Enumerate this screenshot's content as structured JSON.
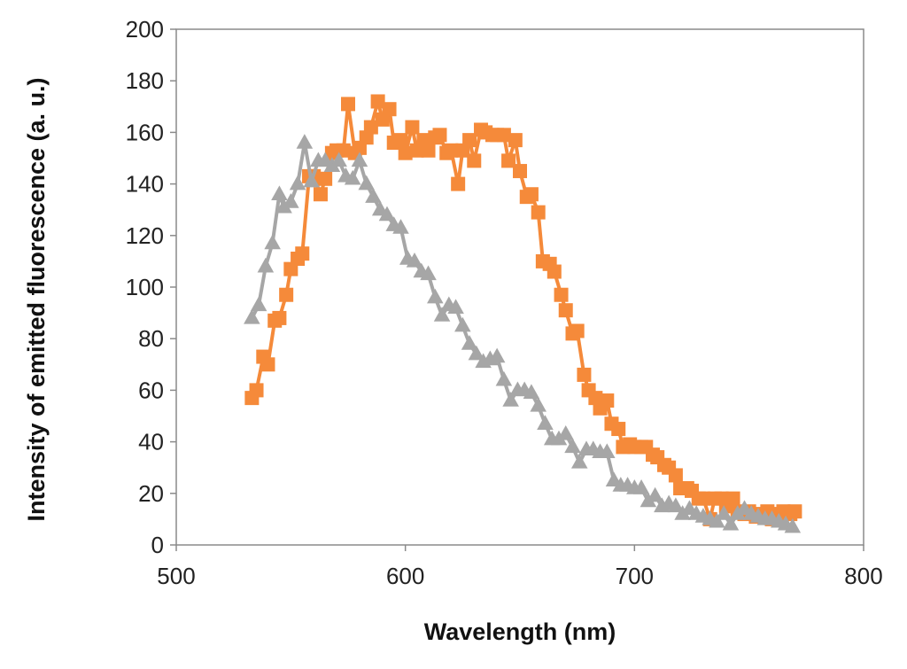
{
  "chart_data": {
    "type": "line",
    "title": "",
    "xlabel": "Wavelength (nm)",
    "ylabel": "Intensity of emitted fluorescence (a. u.)",
    "xlim": [
      500,
      800
    ],
    "ylim": [
      0,
      200
    ],
    "xticks": [
      500,
      600,
      700,
      800
    ],
    "yticks": [
      0,
      20,
      40,
      60,
      80,
      100,
      120,
      140,
      160,
      180,
      200
    ],
    "grid": false,
    "legend": "none",
    "series": [
      {
        "name": "orange-square-series",
        "color": "#f58a3a",
        "marker": "square",
        "x": [
          533,
          535,
          538,
          540,
          543,
          545,
          548,
          550,
          553,
          555,
          558,
          560,
          563,
          565,
          568,
          570,
          573,
          575,
          578,
          580,
          583,
          585,
          588,
          590,
          593,
          595,
          598,
          600,
          603,
          605,
          608,
          610,
          613,
          615,
          618,
          620,
          623,
          625,
          628,
          630,
          633,
          635,
          638,
          640,
          643,
          645,
          648,
          650,
          653,
          655,
          658,
          660,
          663,
          665,
          668,
          670,
          673,
          675,
          678,
          680,
          683,
          685,
          688,
          690,
          693,
          695,
          698,
          700,
          703,
          705,
          708,
          710,
          713,
          715,
          718,
          720,
          723,
          725,
          728,
          730,
          733,
          735,
          738,
          740,
          743,
          745,
          748,
          750,
          753,
          755,
          758,
          760,
          763,
          765,
          768,
          770
        ],
        "values": [
          57,
          60,
          73,
          70,
          87,
          88,
          97,
          107,
          111,
          113,
          143,
          143,
          136,
          142,
          152,
          153,
          153,
          171,
          152,
          154,
          158,
          162,
          172,
          165,
          169,
          156,
          157,
          152,
          162,
          153,
          157,
          153,
          158,
          159,
          152,
          153,
          140,
          153,
          157,
          149,
          161,
          160,
          159,
          159,
          159,
          149,
          157,
          145,
          135,
          136,
          129,
          110,
          109,
          106,
          97,
          91,
          82,
          83,
          66,
          60,
          57,
          53,
          56,
          47,
          45,
          38,
          39,
          38,
          38,
          38,
          35,
          34,
          31,
          30,
          27,
          22,
          22,
          21,
          18,
          18,
          10,
          18,
          18,
          15,
          18,
          13,
          12,
          13,
          11,
          12,
          13,
          10,
          12,
          13,
          12,
          13
        ],
        "x_note": "x values trimmed/aligned to 96 points"
      },
      {
        "name": "gray-triangle-series",
        "color": "#a6a6a6",
        "marker": "triangle",
        "x": [
          533,
          536,
          539,
          542,
          545,
          547,
          550,
          553,
          556,
          559,
          562,
          565,
          568,
          571,
          574,
          577,
          580,
          583,
          586,
          589,
          592,
          595,
          598,
          601,
          604,
          607,
          610,
          613,
          616,
          619,
          622,
          625,
          628,
          631,
          634,
          637,
          640,
          643,
          646,
          649,
          652,
          655,
          658,
          661,
          664,
          667,
          670,
          673,
          676,
          679,
          682,
          685,
          688,
          691,
          694,
          697,
          700,
          703,
          706,
          709,
          712,
          715,
          718,
          721,
          724,
          727,
          730,
          733,
          736,
          739,
          742,
          745,
          748,
          751,
          754,
          757,
          760,
          763,
          766,
          769
        ],
        "values": [
          88,
          93,
          108,
          117,
          136,
          131,
          133,
          140,
          156,
          141,
          149,
          149,
          147,
          149,
          143,
          142,
          149,
          140,
          135,
          130,
          128,
          124,
          123,
          111,
          110,
          106,
          105,
          96,
          89,
          93,
          92,
          85,
          78,
          74,
          71,
          72,
          73,
          64,
          56,
          60,
          60,
          59,
          54,
          47,
          41,
          41,
          43,
          38,
          32,
          37,
          37,
          36,
          36,
          25,
          23,
          23,
          22,
          22,
          17,
          19,
          15,
          16,
          15,
          12,
          14,
          12,
          11,
          10,
          9,
          12,
          8,
          12,
          14,
          12,
          11,
          10,
          10,
          9,
          8,
          7
        ]
      }
    ]
  }
}
